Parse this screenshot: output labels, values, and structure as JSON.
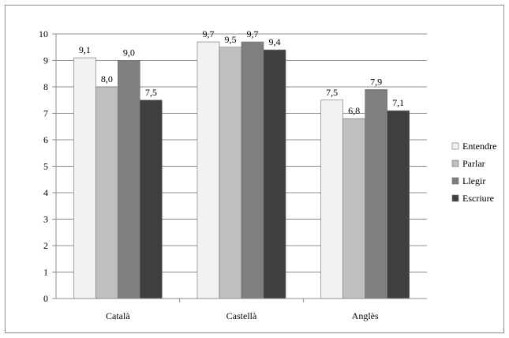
{
  "chart_data": {
    "type": "bar",
    "title": "",
    "xlabel": "",
    "ylabel": "",
    "categories": [
      "Català",
      "Castellà",
      "Anglès"
    ],
    "ylim": [
      0,
      10
    ],
    "yticks": [
      "0",
      "1",
      "2",
      "3",
      "4",
      "5",
      "6",
      "7",
      "8",
      "9",
      "10"
    ],
    "grid": true,
    "legend_position": "right",
    "series": [
      {
        "name": "Entendre",
        "color": "#f2f2f2",
        "values": [
          9.1,
          9.7,
          7.5
        ],
        "labels": [
          "9,1",
          "9,7",
          "7,5"
        ]
      },
      {
        "name": "Parlar",
        "color": "#bfbfbf",
        "values": [
          8.0,
          9.5,
          6.8
        ],
        "labels": [
          "8,0",
          "9,5",
          "6,8"
        ]
      },
      {
        "name": "Llegir",
        "color": "#7f7f7f",
        "values": [
          9.0,
          9.7,
          7.9
        ],
        "labels": [
          "9,0",
          "9,7",
          "7,9"
        ]
      },
      {
        "name": "Escriure",
        "color": "#3f3f3f",
        "values": [
          7.5,
          9.4,
          7.1
        ],
        "labels": [
          "7,5",
          "9,4",
          "7,1"
        ]
      }
    ]
  }
}
